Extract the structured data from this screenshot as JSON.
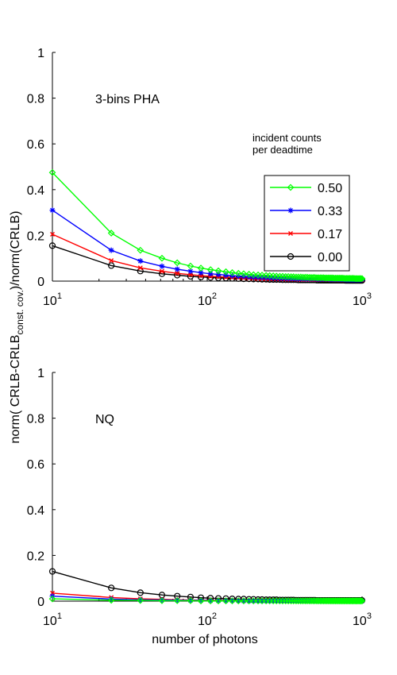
{
  "figure": {
    "shared_ylabel": "norm( CRLB-CRLB",
    "shared_ylabel_sub": "const. cov.",
    "shared_ylabel_tail": ")/norm(CRLB)"
  },
  "chart_data": [
    {
      "type": "line",
      "panel": "top",
      "annotation": "3-bins PHA",
      "legend_title": [
        "incident counts",
        "per deadtime"
      ],
      "legend_placement": "right",
      "xscale": "log",
      "xlim": [
        10,
        1000
      ],
      "ylim": [
        0,
        1
      ],
      "xticks": [
        10,
        100,
        1000
      ],
      "xticklabels": [
        "10",
        "10",
        "10"
      ],
      "xtick_exponents": [
        "1",
        "2",
        "3"
      ],
      "yticks": [
        0,
        0.2,
        0.4,
        0.6,
        0.8,
        1
      ],
      "yticklabels": [
        "0",
        "0.2",
        "0.4",
        "0.6",
        "0.8",
        "1"
      ],
      "grid": false,
      "x": [
        10,
        24,
        37,
        51,
        64,
        78,
        91,
        105,
        118,
        132,
        145,
        159,
        172,
        186,
        199,
        213,
        226,
        240,
        253,
        267,
        280,
        294,
        307,
        321,
        334,
        348,
        361,
        375,
        388,
        402,
        415,
        429,
        442,
        456,
        469,
        483,
        496,
        510,
        523,
        537,
        550,
        564,
        577,
        591,
        604,
        618,
        631,
        645,
        658,
        672,
        685,
        699,
        712,
        726,
        739,
        753,
        766,
        780,
        793,
        807,
        820,
        834,
        847,
        861,
        874,
        888,
        901,
        915,
        928,
        942,
        955,
        969,
        982,
        1000
      ],
      "series": [
        {
          "name": "0.50",
          "color": "#00ff00",
          "marker": "diamond",
          "values": [
            0.475,
            0.21,
            0.135,
            0.1,
            0.08,
            0.066,
            0.057,
            0.05,
            0.045,
            0.041,
            0.037,
            0.034,
            0.032,
            0.03,
            0.028,
            0.027,
            0.026,
            0.025,
            0.024,
            0.023,
            0.022,
            0.021,
            0.021,
            0.02,
            0.02,
            0.019,
            0.019,
            0.018,
            0.018,
            0.018,
            0.017,
            0.017,
            0.017,
            0.016,
            0.016,
            0.016,
            0.016,
            0.015,
            0.015,
            0.015,
            0.015,
            0.015,
            0.014,
            0.014,
            0.014,
            0.014,
            0.014,
            0.014,
            0.013,
            0.013,
            0.013,
            0.013,
            0.013,
            0.013,
            0.013,
            0.013,
            0.012,
            0.012,
            0.012,
            0.012,
            0.012,
            0.012,
            0.012,
            0.012,
            0.012,
            0.012,
            0.011,
            0.011,
            0.011,
            0.011,
            0.011,
            0.011,
            0.011,
            0.011
          ]
        },
        {
          "name": "0.33",
          "color": "#0000ff",
          "marker": "star",
          "values": [
            0.31,
            0.135,
            0.088,
            0.065,
            0.052,
            0.043,
            0.037,
            0.032,
            0.029,
            0.026,
            0.024,
            0.022,
            0.021,
            0.019,
            0.018,
            0.017,
            0.016,
            0.016,
            0.015,
            0.014,
            0.014,
            0.013,
            0.013,
            0.013,
            0.012,
            0.012,
            0.012,
            0.011,
            0.011,
            0.011,
            0.011,
            0.01,
            0.01,
            0.01,
            0.01,
            0.01,
            0.01,
            0.009,
            0.009,
            0.009,
            0.009,
            0.009,
            0.009,
            0.009,
            0.009,
            0.008,
            0.008,
            0.008,
            0.008,
            0.008,
            0.008,
            0.008,
            0.008,
            0.008,
            0.008,
            0.008,
            0.008,
            0.007,
            0.007,
            0.007,
            0.007,
            0.007,
            0.007,
            0.007,
            0.007,
            0.007,
            0.007,
            0.007,
            0.007,
            0.007,
            0.007,
            0.007,
            0.007,
            0.007
          ]
        },
        {
          "name": "0.17",
          "color": "#ff0000",
          "marker": "x",
          "values": [
            0.205,
            0.09,
            0.058,
            0.043,
            0.034,
            0.028,
            0.024,
            0.021,
            0.019,
            0.017,
            0.016,
            0.015,
            0.014,
            0.013,
            0.012,
            0.011,
            0.011,
            0.01,
            0.01,
            0.01,
            0.009,
            0.009,
            0.009,
            0.008,
            0.008,
            0.008,
            0.008,
            0.008,
            0.007,
            0.007,
            0.007,
            0.007,
            0.007,
            0.007,
            0.007,
            0.006,
            0.006,
            0.006,
            0.006,
            0.006,
            0.006,
            0.006,
            0.006,
            0.006,
            0.006,
            0.006,
            0.005,
            0.005,
            0.005,
            0.005,
            0.005,
            0.005,
            0.005,
            0.005,
            0.005,
            0.005,
            0.005,
            0.005,
            0.005,
            0.005,
            0.005,
            0.005,
            0.005,
            0.005,
            0.005,
            0.005,
            0.005,
            0.005,
            0.005,
            0.005,
            0.005,
            0.005,
            0.005,
            0.005
          ]
        },
        {
          "name": "0.00",
          "color": "#000000",
          "marker": "circle",
          "values": [
            0.155,
            0.068,
            0.044,
            0.032,
            0.026,
            0.021,
            0.018,
            0.016,
            0.014,
            0.013,
            0.012,
            0.011,
            0.01,
            0.01,
            0.009,
            0.009,
            0.008,
            0.008,
            0.007,
            0.007,
            0.007,
            0.007,
            0.006,
            0.006,
            0.006,
            0.006,
            0.006,
            0.006,
            0.005,
            0.005,
            0.005,
            0.005,
            0.005,
            0.005,
            0.005,
            0.005,
            0.005,
            0.004,
            0.004,
            0.004,
            0.004,
            0.004,
            0.004,
            0.004,
            0.004,
            0.004,
            0.004,
            0.004,
            0.004,
            0.004,
            0.004,
            0.004,
            0.004,
            0.004,
            0.004,
            0.004,
            0.004,
            0.003,
            0.003,
            0.003,
            0.003,
            0.003,
            0.003,
            0.003,
            0.003,
            0.003,
            0.003,
            0.003,
            0.003,
            0.003,
            0.003,
            0.003,
            0.003,
            0.003
          ]
        }
      ]
    },
    {
      "type": "line",
      "panel": "bottom",
      "annotation": "NQ",
      "xlabel": "number of photons",
      "xscale": "log",
      "xlim": [
        10,
        1000
      ],
      "ylim": [
        0,
        1
      ],
      "xticks": [
        10,
        100,
        1000
      ],
      "xticklabels": [
        "10",
        "10",
        "10"
      ],
      "xtick_exponents": [
        "1",
        "2",
        "3"
      ],
      "yticks": [
        0,
        0.2,
        0.4,
        0.6,
        0.8,
        1
      ],
      "yticklabels": [
        "0",
        "0.2",
        "0.4",
        "0.6",
        "0.8",
        "1"
      ],
      "grid": false,
      "x": [
        10,
        24,
        37,
        51,
        64,
        78,
        91,
        105,
        118,
        132,
        145,
        159,
        172,
        186,
        199,
        213,
        226,
        240,
        253,
        267,
        280,
        294,
        307,
        321,
        334,
        348,
        361,
        375,
        388,
        402,
        415,
        429,
        442,
        456,
        469,
        483,
        496,
        510,
        523,
        537,
        550,
        564,
        577,
        591,
        604,
        618,
        631,
        645,
        658,
        672,
        685,
        699,
        712,
        726,
        739,
        753,
        766,
        780,
        793,
        807,
        820,
        834,
        847,
        861,
        874,
        888,
        901,
        915,
        928,
        942,
        955,
        969,
        982,
        1000
      ],
      "series": [
        {
          "name": "0.50",
          "color": "#00ff00",
          "marker": "diamond",
          "values": [
            0.01,
            0.004,
            0.003,
            0.002,
            0.002,
            0.002,
            0.001,
            0.001,
            0.001,
            0.001,
            0.001,
            0.001,
            0.001,
            0.001,
            0.001,
            0.001,
            0.001,
            0.001,
            0.001,
            0.001,
            0.001,
            0.001,
            0.001,
            0.001,
            0.001,
            0.001,
            0.001,
            0.001,
            0.001,
            0.001,
            0.001,
            0.001,
            0.001,
            0.001,
            0.001,
            0.001,
            0.001,
            0.001,
            0.001,
            0.001,
            0.001,
            0.001,
            0.001,
            0.001,
            0.001,
            0.001,
            0.001,
            0.001,
            0.001,
            0.001,
            0.001,
            0.001,
            0.001,
            0.001,
            0.001,
            0.001,
            0.001,
            0.001,
            0.001,
            0.001,
            0.001,
            0.001,
            0.001,
            0.001,
            0.001,
            0.001,
            0.001,
            0.001,
            0.001,
            0.001,
            0.001,
            0.001,
            0.001,
            0.001
          ]
        },
        {
          "name": "0.33",
          "color": "#0000ff",
          "marker": "star",
          "values": [
            0.022,
            0.009,
            0.006,
            0.005,
            0.004,
            0.003,
            0.003,
            0.002,
            0.002,
            0.002,
            0.002,
            0.002,
            0.001,
            0.001,
            0.001,
            0.001,
            0.001,
            0.001,
            0.001,
            0.001,
            0.001,
            0.001,
            0.001,
            0.001,
            0.001,
            0.001,
            0.001,
            0.001,
            0.001,
            0.001,
            0.001,
            0.001,
            0.001,
            0.001,
            0.001,
            0.001,
            0.001,
            0.001,
            0.001,
            0.001,
            0.001,
            0.001,
            0.001,
            0.001,
            0.001,
            0.001,
            0.001,
            0.001,
            0.001,
            0.001,
            0.001,
            0.001,
            0.001,
            0.001,
            0.001,
            0.001,
            0.001,
            0.001,
            0.001,
            0.001,
            0.001,
            0.001,
            0.001,
            0.001,
            0.001,
            0.001,
            0.001,
            0.001,
            0.001,
            0.001,
            0.001,
            0.001,
            0.001,
            0.001
          ]
        },
        {
          "name": "0.17",
          "color": "#ff0000",
          "marker": "x",
          "values": [
            0.035,
            0.016,
            0.01,
            0.008,
            0.006,
            0.005,
            0.004,
            0.004,
            0.003,
            0.003,
            0.003,
            0.003,
            0.002,
            0.002,
            0.002,
            0.002,
            0.002,
            0.002,
            0.002,
            0.002,
            0.002,
            0.001,
            0.001,
            0.001,
            0.001,
            0.001,
            0.001,
            0.001,
            0.001,
            0.001,
            0.001,
            0.001,
            0.001,
            0.001,
            0.001,
            0.001,
            0.001,
            0.001,
            0.001,
            0.001,
            0.001,
            0.001,
            0.001,
            0.001,
            0.001,
            0.001,
            0.001,
            0.001,
            0.001,
            0.001,
            0.001,
            0.001,
            0.001,
            0.001,
            0.001,
            0.001,
            0.001,
            0.001,
            0.001,
            0.001,
            0.001,
            0.001,
            0.001,
            0.001,
            0.001,
            0.001,
            0.001,
            0.001,
            0.001,
            0.001,
            0.001,
            0.001,
            0.001,
            0.001
          ]
        },
        {
          "name": "0.00",
          "color": "#000000",
          "marker": "circle",
          "values": [
            0.13,
            0.058,
            0.037,
            0.027,
            0.022,
            0.018,
            0.015,
            0.013,
            0.012,
            0.011,
            0.01,
            0.009,
            0.009,
            0.008,
            0.008,
            0.007,
            0.007,
            0.006,
            0.006,
            0.006,
            0.006,
            0.005,
            0.005,
            0.005,
            0.005,
            0.005,
            0.005,
            0.004,
            0.004,
            0.004,
            0.004,
            0.004,
            0.004,
            0.004,
            0.004,
            0.004,
            0.004,
            0.003,
            0.003,
            0.003,
            0.003,
            0.003,
            0.003,
            0.003,
            0.003,
            0.003,
            0.003,
            0.003,
            0.003,
            0.003,
            0.003,
            0.003,
            0.003,
            0.003,
            0.003,
            0.003,
            0.003,
            0.003,
            0.003,
            0.003,
            0.003,
            0.003,
            0.003,
            0.003,
            0.003,
            0.003,
            0.003,
            0.003,
            0.003,
            0.003,
            0.003,
            0.003,
            0.003,
            0.003
          ]
        }
      ]
    }
  ]
}
